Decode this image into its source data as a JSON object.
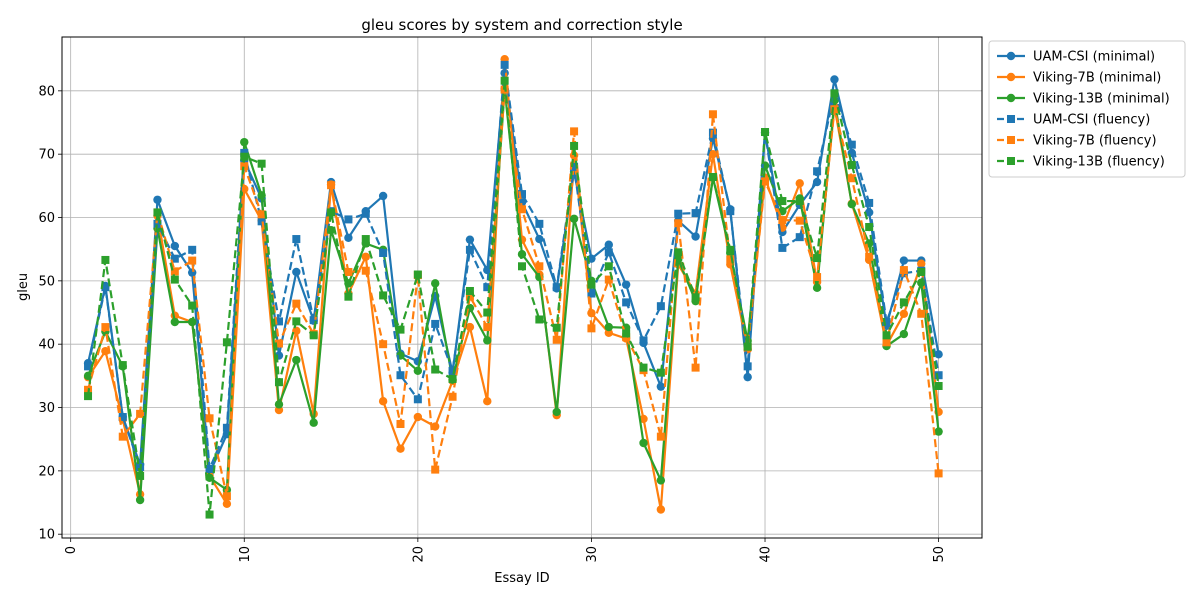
{
  "chart_data": {
    "type": "line",
    "title": "gleu scores by system and correction style",
    "xlabel": "Essay ID",
    "ylabel": "gleu",
    "xlim": [
      -0.5,
      52.5
    ],
    "ylim": [
      9.4,
      88.5
    ],
    "xticks": [
      0,
      10,
      20,
      30,
      40,
      50
    ],
    "yticks": [
      10,
      20,
      30,
      40,
      50,
      60,
      70,
      80
    ],
    "grid": true,
    "legend_position": "outside-top-right",
    "x": [
      1,
      2,
      3,
      4,
      5,
      6,
      7,
      8,
      9,
      10,
      11,
      12,
      13,
      14,
      15,
      16,
      17,
      18,
      19,
      20,
      21,
      22,
      23,
      24,
      25,
      26,
      27,
      28,
      29,
      30,
      31,
      32,
      33,
      34,
      35,
      36,
      37,
      38,
      39,
      40,
      41,
      42,
      43,
      44,
      45,
      46,
      47,
      48,
      49,
      50
    ],
    "series": [
      {
        "name": "UAM-CSI (minimal)",
        "color": "#1f77b4",
        "style": "solid",
        "marker": "circle",
        "values": [
          37.0,
          49.2,
          28.5,
          21.0,
          62.8,
          55.5,
          51.3,
          19.6,
          25.8,
          69.0,
          63.0,
          38.2,
          51.4,
          43.7,
          65.6,
          56.8,
          61.0,
          63.4,
          38.5,
          37.3,
          47.6,
          35.5,
          56.5,
          51.7,
          82.8,
          62.4,
          56.6,
          48.8,
          67.2,
          53.5,
          55.7,
          49.4,
          40.2,
          33.3,
          59.5,
          57.0,
          72.5,
          61.3,
          34.8,
          73.4,
          57.7,
          62.0,
          65.6,
          81.8,
          70.2,
          60.8,
          42.9,
          53.2,
          53.2,
          38.4
        ]
      },
      {
        "name": "Viking-7B (minimal)",
        "color": "#ff7f0e",
        "style": "solid",
        "marker": "circle",
        "values": [
          34.8,
          38.9,
          28.1,
          16.3,
          60.3,
          44.5,
          43.5,
          19.2,
          14.8,
          64.5,
          59.5,
          29.6,
          42.1,
          29.0,
          65.2,
          48.0,
          53.8,
          31.0,
          23.5,
          28.5,
          27.0,
          34.2,
          42.7,
          31.0,
          85.0,
          56.5,
          51.0,
          28.8,
          69.8,
          44.9,
          41.8,
          40.9,
          28.2,
          13.9,
          52.6,
          48.0,
          70.0,
          52.6,
          39.2,
          66.3,
          58.4,
          65.4,
          49.8,
          77.5,
          62.2,
          53.3,
          39.8,
          44.8,
          52.7,
          29.3
        ]
      },
      {
        "name": "Viking-13B (minimal)",
        "color": "#2ca02c",
        "style": "solid",
        "marker": "circle",
        "values": [
          35.0,
          42.0,
          36.5,
          15.4,
          58.3,
          43.5,
          43.5,
          18.9,
          17.0,
          71.9,
          63.5,
          30.5,
          37.5,
          27.6,
          58.0,
          49.6,
          55.9,
          54.9,
          38.2,
          35.8,
          49.6,
          34.4,
          45.7,
          40.6,
          80.3,
          54.2,
          50.6,
          29.3,
          59.8,
          50.0,
          42.7,
          42.6,
          24.4,
          18.5,
          53.4,
          46.8,
          66.3,
          54.4,
          40.5,
          68.2,
          61.0,
          63.0,
          48.9,
          78.5,
          62.1,
          55.9,
          39.7,
          41.6,
          49.7,
          26.2
        ]
      },
      {
        "name": "UAM-CSI (fluency)",
        "color": "#1f77b4",
        "style": "dashed",
        "marker": "square",
        "values": [
          36.5,
          49.0,
          28.5,
          20.6,
          59.0,
          53.5,
          54.9,
          20.3,
          26.8,
          70.2,
          59.4,
          43.6,
          56.6,
          43.8,
          61.0,
          59.7,
          60.6,
          54.4,
          35.1,
          31.3,
          43.2,
          35.8,
          54.9,
          49.0,
          84.1,
          63.7,
          59.0,
          49.0,
          68.0,
          48.0,
          54.5,
          46.6,
          40.6,
          46.0,
          60.6,
          60.7,
          73.4,
          61.0,
          36.5,
          73.5,
          55.2,
          56.9,
          67.3,
          79.6,
          71.5,
          62.3,
          43.5,
          51.2,
          51.6,
          35.1
        ]
      },
      {
        "name": "Viking-7B (fluency)",
        "color": "#ff7f0e",
        "style": "dashed",
        "marker": "square",
        "values": [
          32.8,
          42.7,
          25.4,
          29.0,
          60.8,
          51.5,
          53.2,
          28.3,
          16.0,
          68.1,
          60.5,
          40.1,
          46.4,
          41.6,
          65.1,
          51.4,
          51.6,
          40.0,
          27.4,
          50.9,
          20.2,
          31.7,
          47.5,
          42.7,
          80.2,
          61.3,
          52.3,
          40.7,
          73.6,
          42.5,
          50.2,
          41.1,
          35.9,
          25.4,
          59.1,
          36.3,
          76.3,
          53.4,
          39.5,
          65.7,
          59.6,
          59.5,
          50.6,
          77.1,
          66.2,
          53.8,
          40.3,
          51.7,
          44.8,
          19.6
        ]
      },
      {
        "name": "Viking-13B (fluency)",
        "color": "#2ca02c",
        "style": "dashed",
        "marker": "square",
        "values": [
          31.8,
          53.3,
          36.7,
          19.2,
          60.8,
          50.2,
          46.1,
          13.1,
          40.3,
          69.6,
          68.5,
          34.0,
          43.6,
          41.4,
          60.8,
          47.5,
          56.6,
          47.7,
          42.3,
          51.0,
          36.0,
          34.5,
          48.4,
          45.0,
          81.6,
          52.3,
          43.9,
          42.6,
          71.3,
          49.4,
          52.3,
          41.7,
          36.3,
          35.5,
          54.5,
          47.4,
          66.4,
          54.9,
          39.6,
          73.5,
          62.6,
          62.6,
          53.6,
          79.6,
          68.3,
          58.5,
          41.4,
          46.6,
          51.4,
          33.4
        ]
      }
    ]
  }
}
